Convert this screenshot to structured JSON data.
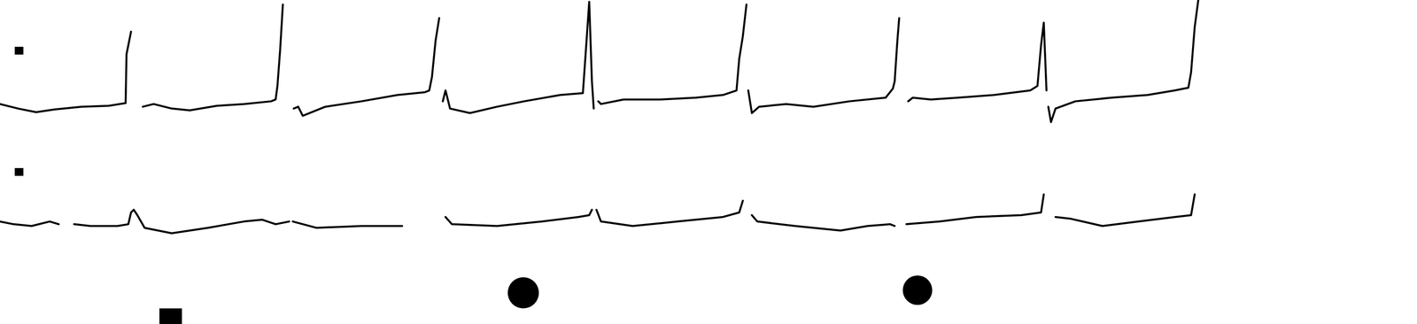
{
  "chart_data": [
    {
      "type": "line",
      "tick_labels": false,
      "grid": false,
      "color": "#000000",
      "xlim": [
        0,
        15.68
      ],
      "ylim": [
        -1.1,
        2.3
      ],
      "x": [
        0,
        0.2,
        0.4,
        0.6,
        0.9,
        1.2,
        1.39,
        1.4,
        1.45,
        1.5,
        1.58,
        1.7,
        1.9,
        2.1,
        2.4,
        2.7,
        3.0,
        3.05,
        3.07,
        3.1,
        3.13,
        3.18,
        3.25,
        3.3,
        3.35,
        3.6,
        4.0,
        4.4,
        4.7,
        4.75,
        4.78,
        4.82,
        4.86,
        4.88,
        4.9,
        4.93,
        4.98,
        5.2,
        5.5,
        5.8,
        6.2,
        6.45,
        6.48,
        6.52,
        6.55,
        6.57,
        6.59,
        6.62,
        6.65,
        6.9,
        7.3,
        7.7,
        8.0,
        8.15,
        8.18,
        8.22,
        8.26,
        8.27,
        8.28,
        8.32,
        8.4,
        8.7,
        9.0,
        9.4,
        9.8,
        9.88,
        9.9,
        9.93,
        9.95,
        9.98,
        10.05,
        10.1,
        10.3,
        10.6,
        11.0,
        11.4,
        11.48,
        11.52,
        11.55,
        11.58,
        11.6,
        11.6,
        11.63,
        11.68,
        11.9,
        12.3,
        12.7,
        13.0,
        13.15,
        13.18,
        13.22,
        13.26
      ],
      "series": [
        {
          "values": [
            0,
            -0.1,
            -0.18,
            -0.12,
            -0.06,
            -0.04,
            0.02,
            1.1,
            1.6,
            null,
            -0.06,
            0,
            -0.1,
            -0.14,
            -0.04,
            0,
            0.06,
            0.1,
            0.4,
            1.2,
            2.2,
            null,
            -0.1,
            -0.06,
            -0.26,
            -0.06,
            0.06,
            0.2,
            0.26,
            0.3,
            0.6,
            1.4,
            1.9,
            null,
            0.06,
            0.3,
            -0.1,
            -0.2,
            -0.06,
            0.06,
            0.2,
            0.24,
            1.1,
            2.26,
            0.5,
            -0.1,
            null,
            0.06,
            0,
            0.1,
            0.1,
            0.14,
            0.2,
            0.3,
            1.0,
            1.5,
            2.2,
            null,
            0.3,
            -0.2,
            -0.06,
            0,
            -0.06,
            0.06,
            0.14,
            0.34,
            0.5,
            1.4,
            1.9,
            null,
            0.06,
            0.14,
            0.1,
            0.14,
            0.2,
            0.3,
            0.4,
            1.3,
            1.8,
            0.3,
            null,
            -0.06,
            -0.4,
            -0.1,
            0.06,
            0.14,
            0.2,
            0.3,
            0.36,
            0.7,
            1.7,
            2.3
          ]
        }
      ]
    },
    {
      "type": "line",
      "tick_labels": false,
      "grid": false,
      "color": "#000000",
      "xlim": [
        0,
        15.68
      ],
      "ylim": [
        -1.1,
        1.5
      ],
      "x": [
        0,
        0.15,
        0.35,
        0.55,
        0.65,
        0.7,
        0.82,
        1.0,
        1.3,
        1.42,
        1.45,
        1.48,
        1.52,
        1.6,
        1.9,
        2.3,
        2.7,
        2.9,
        3.05,
        3.2,
        3.21,
        3.24,
        3.5,
        4.0,
        4.45,
        4.6,
        4.93,
        5.0,
        5.5,
        6.0,
        6.4,
        6.52,
        6.55,
        6.57,
        6.6,
        6.65,
        7.0,
        7.5,
        8.0,
        8.18,
        8.22,
        8.26,
        8.32,
        8.38,
        8.8,
        9.3,
        9.6,
        9.85,
        9.9,
        9.95,
        10.03,
        10.4,
        10.8,
        11.3,
        11.52,
        11.55,
        11.6,
        11.68,
        11.85,
        12.2,
        12.6,
        13.0,
        13.18,
        13.22
      ],
      "series": [
        {
          "values": [
            0,
            -0.06,
            -0.1,
            0,
            -0.06,
            null,
            -0.06,
            -0.1,
            -0.1,
            -0.06,
            0.2,
            0.26,
            0.14,
            -0.14,
            -0.26,
            -0.14,
            0,
            0.04,
            -0.06,
            0,
            null,
            0,
            -0.14,
            -0.1,
            -0.1,
            null,
            0.1,
            -0.06,
            -0.1,
            0,
            0.1,
            0.14,
            0.26,
            null,
            0.26,
            0,
            -0.1,
            0,
            0.1,
            0.2,
            0.46,
            null,
            0.14,
            0,
            -0.1,
            -0.2,
            -0.1,
            -0.06,
            -0.1,
            null,
            -0.06,
            0,
            0.1,
            0.14,
            0.2,
            0.6,
            null,
            0.1,
            0.06,
            -0.1,
            0,
            0.1,
            0.14,
            0.6
          ]
        }
      ]
    }
  ]
}
